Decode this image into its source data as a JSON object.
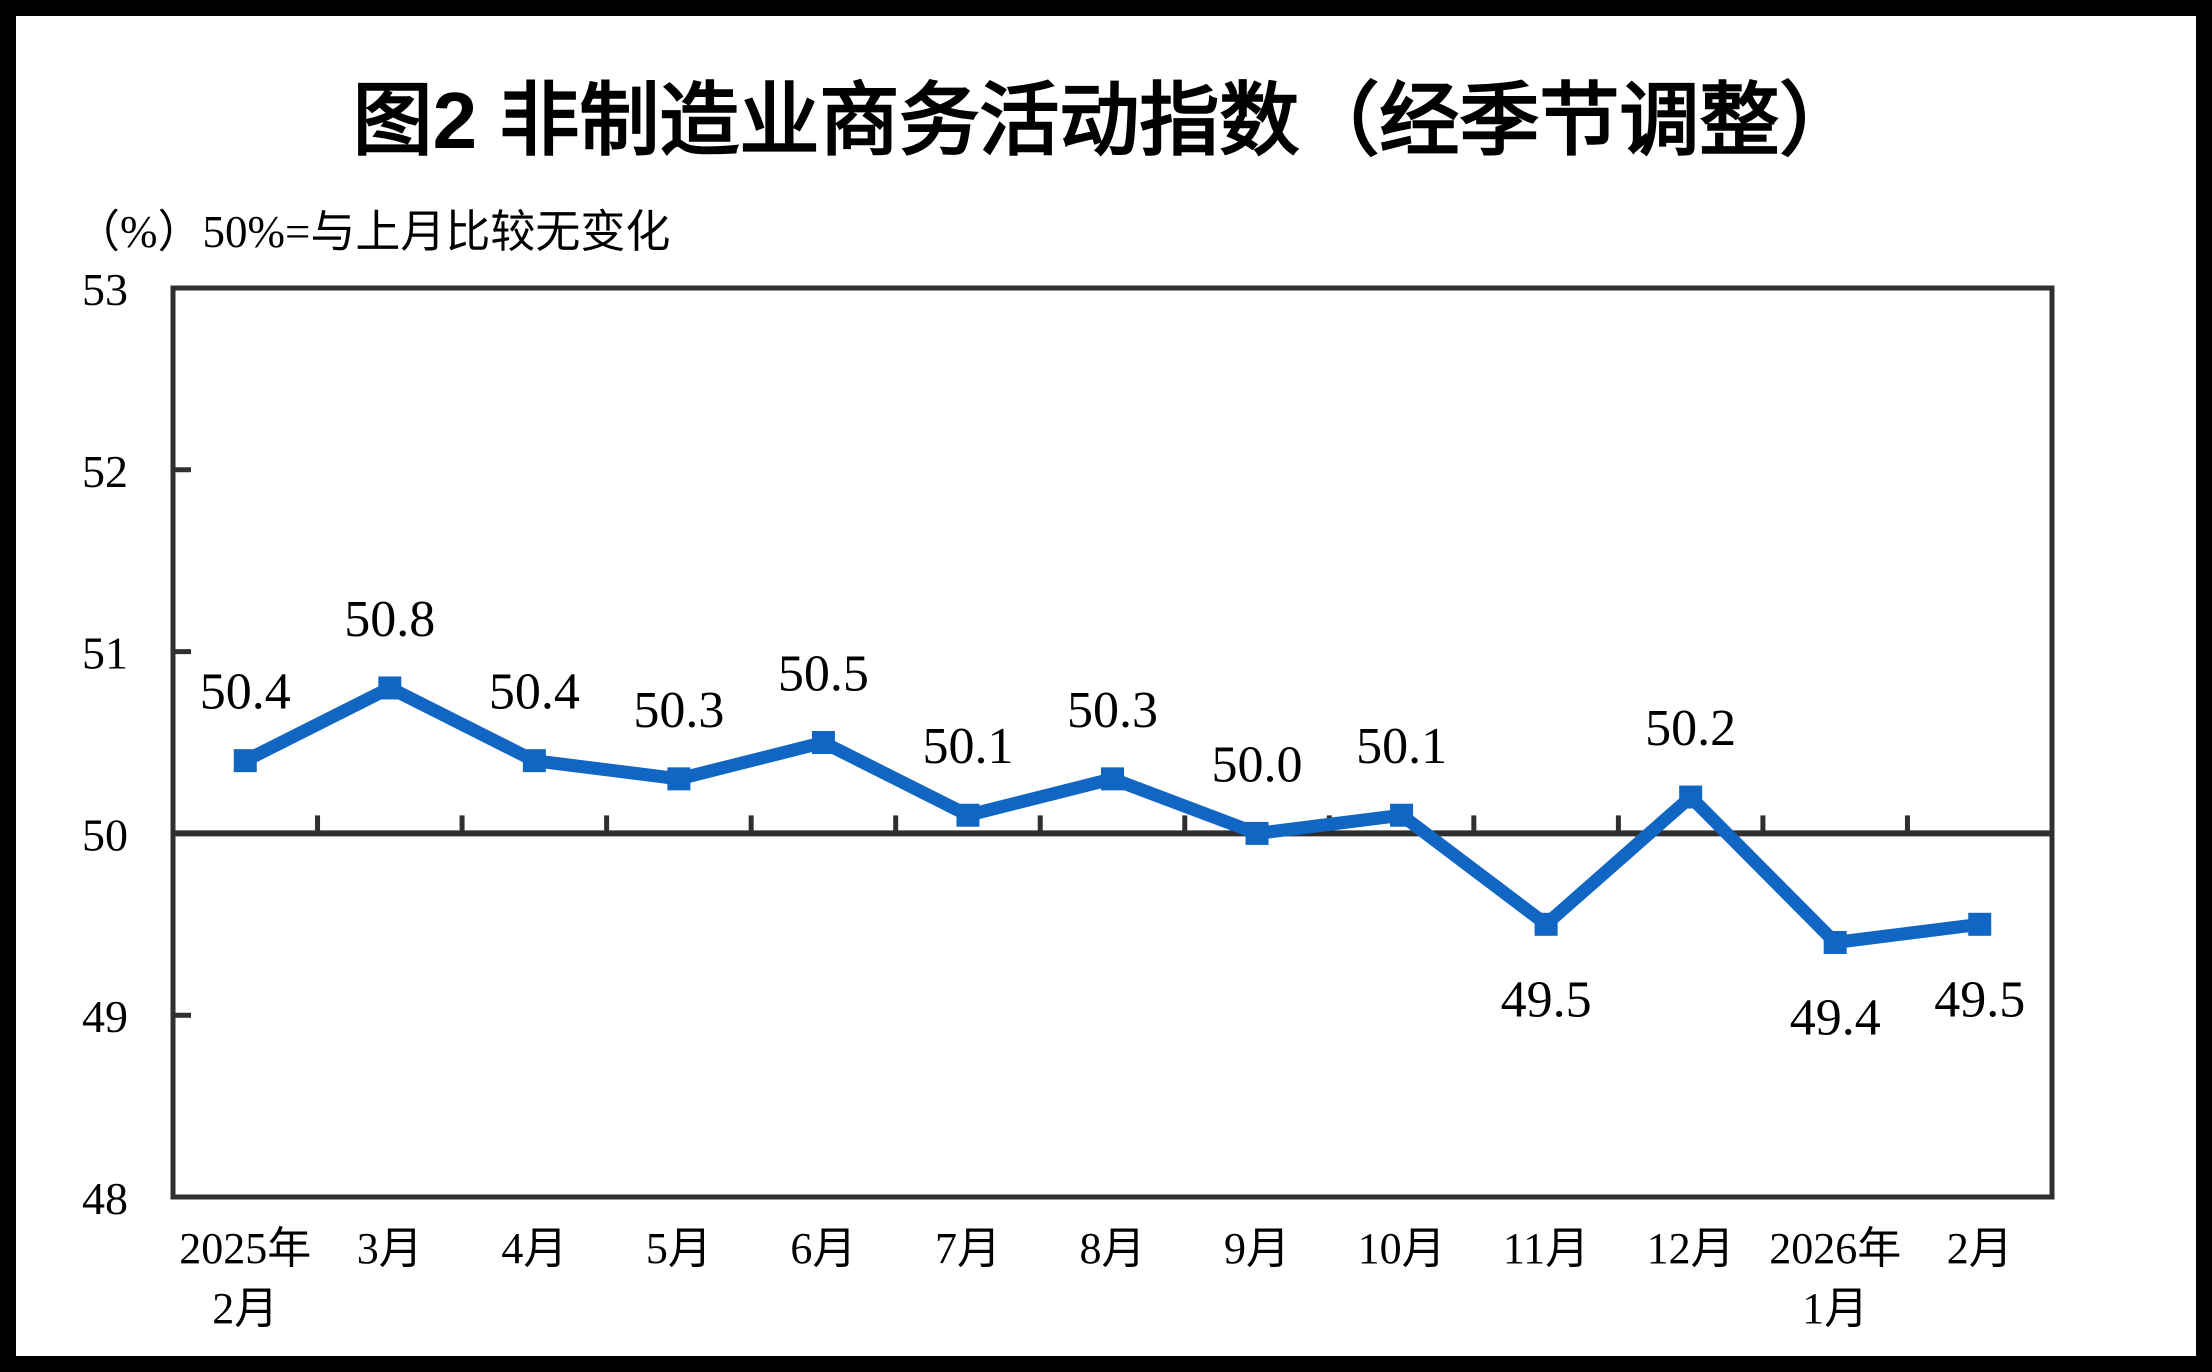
{
  "page": {
    "title": "图2  非制造业商务活动指数（经季节调整）",
    "unit_note": "（%）50%=与上月比较无变化"
  },
  "colors": {
    "line": "#1266C3",
    "axis": "#2F2F2F",
    "text": "#000000",
    "frame": "#000000",
    "background": "#FFFFFF"
  },
  "chart_data": {
    "type": "line",
    "title": "图2  非制造业商务活动指数（经季节调整）",
    "unit_label": "（%）50%=与上月比较无变化",
    "categories": [
      "2025年\n2月",
      "3月",
      "4月",
      "5月",
      "6月",
      "7月",
      "8月",
      "9月",
      "10月",
      "11月",
      "12月",
      "2026年\n1月",
      "2月"
    ],
    "series": [
      {
        "name": "非制造业商务活动指数（经季节调整）",
        "values": [
          50.4,
          50.8,
          50.4,
          50.3,
          50.5,
          50.1,
          50.3,
          50.0,
          50.1,
          49.5,
          50.2,
          49.4,
          49.5
        ]
      }
    ],
    "data_labels": [
      "50.4",
      "50.8",
      "50.4",
      "50.3",
      "50.5",
      "50.1",
      "50.3",
      "50.0",
      "50.1",
      "49.5",
      "50.2",
      "49.4",
      "49.5"
    ],
    "label_positions": [
      "above",
      "above",
      "above",
      "above",
      "above",
      "above",
      "above",
      "above",
      "above",
      "below",
      "above",
      "below",
      "below"
    ],
    "ylim": [
      48,
      53
    ],
    "yticks": [
      53,
      52,
      51,
      50,
      49,
      48
    ],
    "x_axis": {
      "reference_value": 50,
      "tick_marks": "category-boundaries"
    },
    "grid": false,
    "legend_position": "none",
    "marker": "square"
  }
}
